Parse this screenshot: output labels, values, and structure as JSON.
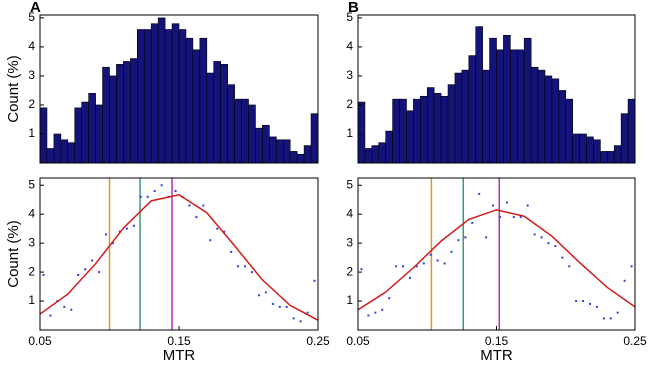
{
  "chart_data": [
    {
      "type": "histogram",
      "panel_label": "A",
      "ylabel": "Count (%)",
      "bins": [
        0.05,
        0.055,
        0.06,
        0.065,
        0.07,
        0.075,
        0.08,
        0.085,
        0.09,
        0.095,
        0.1,
        0.105,
        0.11,
        0.115,
        0.12,
        0.125,
        0.13,
        0.135,
        0.14,
        0.145,
        0.15,
        0.155,
        0.16,
        0.165,
        0.17,
        0.175,
        0.18,
        0.185,
        0.19,
        0.195,
        0.2,
        0.205,
        0.21,
        0.215,
        0.22,
        0.225,
        0.23,
        0.235,
        0.24,
        0.245,
        0.25
      ],
      "values": [
        1.9,
        0.5,
        1.0,
        0.8,
        0.7,
        1.9,
        2.1,
        2.4,
        2.0,
        3.3,
        3.0,
        3.4,
        3.5,
        3.6,
        4.6,
        4.6,
        4.8,
        5.0,
        4.6,
        4.8,
        4.6,
        4.3,
        3.9,
        4.3,
        3.1,
        3.5,
        3.4,
        2.7,
        2.2,
        2.2,
        2.0,
        1.2,
        1.3,
        0.9,
        0.8,
        0.8,
        0.4,
        0.3,
        0.6,
        1.7
      ],
      "color": "#14137a",
      "xlim": [
        0.05,
        0.25
      ],
      "ylim": [
        0,
        5.1
      ],
      "yticks": [
        1,
        2,
        3,
        4,
        5
      ]
    },
    {
      "type": "scatter",
      "ylabel": "Count (%)",
      "xlabel": "MTR",
      "series": [
        {
          "type": "points",
          "color": "#2f3fe0",
          "x": [
            0.0525,
            0.0575,
            0.0625,
            0.0675,
            0.0725,
            0.0775,
            0.0825,
            0.0875,
            0.0925,
            0.0975,
            0.1025,
            0.1075,
            0.1125,
            0.1175,
            0.1225,
            0.1275,
            0.1325,
            0.1375,
            0.1425,
            0.1475,
            0.1525,
            0.1575,
            0.1625,
            0.1675,
            0.1725,
            0.1775,
            0.1825,
            0.1875,
            0.1925,
            0.1975,
            0.2025,
            0.2075,
            0.2125,
            0.2175,
            0.2225,
            0.2275,
            0.2325,
            0.2375,
            0.2425,
            0.2475
          ],
          "values": [
            1.9,
            0.5,
            1.0,
            0.8,
            0.7,
            1.9,
            2.1,
            2.4,
            2.0,
            3.3,
            3.0,
            3.4,
            3.5,
            3.6,
            4.6,
            4.6,
            4.8,
            5.0,
            4.6,
            4.8,
            4.6,
            4.3,
            3.9,
            4.3,
            3.1,
            3.5,
            3.4,
            2.7,
            2.2,
            2.2,
            2.0,
            1.2,
            1.3,
            0.9,
            0.8,
            0.8,
            0.4,
            0.3,
            0.6,
            1.7
          ]
        },
        {
          "type": "line",
          "color": "#d41a1a",
          "x": [
            0.05,
            0.07,
            0.09,
            0.11,
            0.13,
            0.15,
            0.17,
            0.19,
            0.21,
            0.23,
            0.25
          ],
          "values": [
            0.55,
            1.24,
            2.29,
            3.52,
            4.46,
            4.67,
            4.05,
            2.91,
            1.73,
            0.85,
            0.34
          ]
        }
      ],
      "vlines": [
        {
          "x": 0.1,
          "color": "#d49a2a"
        },
        {
          "x": 0.122,
          "color": "#3a9a78"
        },
        {
          "x": 0.145,
          "color": "#b030c0"
        }
      ],
      "xlim": [
        0.05,
        0.25
      ],
      "xticks": [
        0.05,
        0.15,
        0.25
      ],
      "ylim": [
        0,
        5.25
      ],
      "yticks": [
        1,
        2,
        3,
        4,
        5
      ]
    },
    {
      "type": "histogram",
      "panel_label": "B",
      "bins": [
        0.05,
        0.055,
        0.06,
        0.065,
        0.07,
        0.075,
        0.08,
        0.085,
        0.09,
        0.095,
        0.1,
        0.105,
        0.11,
        0.115,
        0.12,
        0.125,
        0.13,
        0.135,
        0.14,
        0.145,
        0.15,
        0.155,
        0.16,
        0.165,
        0.17,
        0.175,
        0.18,
        0.185,
        0.19,
        0.195,
        0.2,
        0.205,
        0.21,
        0.215,
        0.22,
        0.225,
        0.23,
        0.235,
        0.24,
        0.245,
        0.25
      ],
      "values": [
        2.1,
        0.5,
        0.6,
        0.7,
        1.1,
        2.2,
        2.2,
        1.8,
        2.2,
        2.3,
        2.6,
        2.4,
        2.3,
        2.7,
        3.1,
        3.2,
        3.7,
        4.7,
        3.2,
        4.3,
        3.9,
        4.4,
        3.9,
        3.9,
        4.3,
        3.3,
        3.2,
        3.0,
        2.9,
        2.5,
        2.2,
        1.0,
        1.0,
        0.9,
        0.8,
        0.4,
        0.4,
        0.6,
        1.7,
        2.2
      ],
      "color": "#14137a",
      "xlim": [
        0.05,
        0.25
      ],
      "ylim": [
        0,
        5.1
      ],
      "yticks": [
        1,
        2,
        3,
        4,
        5
      ]
    },
    {
      "type": "scatter",
      "xlabel": "MTR",
      "series": [
        {
          "type": "points",
          "color": "#2f3fe0",
          "x": [
            0.0525,
            0.0575,
            0.0625,
            0.0675,
            0.0725,
            0.0775,
            0.0825,
            0.0875,
            0.0925,
            0.0975,
            0.1025,
            0.1075,
            0.1125,
            0.1175,
            0.1225,
            0.1275,
            0.1325,
            0.1375,
            0.1425,
            0.1475,
            0.1525,
            0.1575,
            0.1625,
            0.1675,
            0.1725,
            0.1775,
            0.1825,
            0.1875,
            0.1925,
            0.1975,
            0.2025,
            0.2075,
            0.2125,
            0.2175,
            0.2225,
            0.2275,
            0.2325,
            0.2375,
            0.2425,
            0.2475
          ],
          "values": [
            2.1,
            0.5,
            0.6,
            0.7,
            1.1,
            2.2,
            2.2,
            1.8,
            2.2,
            2.3,
            2.6,
            2.4,
            2.3,
            2.7,
            3.1,
            3.2,
            3.7,
            4.7,
            3.2,
            4.3,
            3.9,
            4.4,
            3.9,
            3.9,
            4.3,
            3.3,
            3.2,
            3.0,
            2.9,
            2.5,
            2.2,
            1.0,
            1.0,
            0.9,
            0.8,
            0.4,
            0.4,
            0.6,
            1.7,
            2.2
          ]
        },
        {
          "type": "line",
          "color": "#d41a1a",
          "x": [
            0.05,
            0.07,
            0.09,
            0.11,
            0.13,
            0.15,
            0.17,
            0.19,
            0.21,
            0.23,
            0.25
          ],
          "values": [
            0.7,
            1.31,
            2.15,
            3.07,
            3.82,
            4.15,
            3.93,
            3.24,
            2.33,
            1.47,
            0.8
          ]
        }
      ],
      "vlines": [
        {
          "x": 0.103,
          "color": "#d49a2a"
        },
        {
          "x": 0.126,
          "color": "#3a9a78"
        },
        {
          "x": 0.152,
          "color": "#b030c0"
        }
      ],
      "xlim": [
        0.05,
        0.25
      ],
      "xticks": [
        0.05,
        0.15,
        0.25
      ],
      "ylim": [
        0,
        5.25
      ],
      "yticks": [
        1,
        2,
        3,
        4,
        5
      ]
    }
  ]
}
